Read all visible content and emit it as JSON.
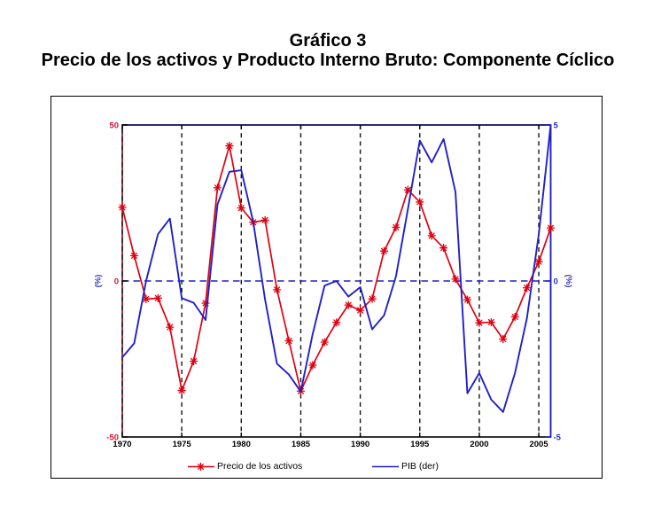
{
  "page": {
    "title_line1": "Gráfico 3",
    "title_line2": "Precio de los activos y Producto Interno Bruto: Componente Cíclico"
  },
  "chart_data": {
    "type": "line",
    "title": "Gráfico 3 — Precio de los activos y Producto Interno Bruto: Componente Cíclico",
    "x": [
      1970,
      1971,
      1972,
      1973,
      1974,
      1975,
      1976,
      1977,
      1978,
      1979,
      1980,
      1981,
      1982,
      1983,
      1984,
      1985,
      1986,
      1987,
      1988,
      1989,
      1990,
      1991,
      1992,
      1993,
      1994,
      1995,
      1996,
      1997,
      1998,
      1999,
      2000,
      2001,
      2002,
      2003,
      2004,
      2005,
      2006
    ],
    "x_ticks": [
      1970,
      1975,
      1980,
      1985,
      1990,
      1995,
      2000,
      2005
    ],
    "series": [
      {
        "name": "Precio de los activos",
        "axis": "left",
        "color": "#e00010",
        "marker": "asterisk",
        "values": [
          23.6,
          8.1,
          -5.8,
          -5.5,
          -14.8,
          -35.1,
          -25.7,
          -7.1,
          29.9,
          43.3,
          23.4,
          18.8,
          19.5,
          -2.8,
          -19.2,
          -35.3,
          -27.0,
          -19.6,
          -13.3,
          -7.7,
          -9.4,
          -5.7,
          9.6,
          17.2,
          29.2,
          25.3,
          14.5,
          10.6,
          0.6,
          -6.0,
          -13.4,
          -13.2,
          -18.6,
          -11.5,
          -2.2,
          6.2,
          17.0
        ]
      },
      {
        "name": "PIB (der)",
        "axis": "right",
        "color": "#2020c8",
        "marker": "none",
        "values": [
          -2.45,
          -2.0,
          0.0,
          1.5,
          2.0,
          -0.55,
          -0.7,
          -1.25,
          2.45,
          3.5,
          3.55,
          1.9,
          -0.6,
          -2.65,
          -3.0,
          -3.55,
          -1.7,
          -0.15,
          0.0,
          -0.5,
          -0.2,
          -1.55,
          -1.1,
          0.15,
          2.3,
          4.5,
          3.8,
          4.55,
          2.85,
          -3.6,
          -2.95,
          -3.8,
          -4.2,
          -2.95,
          -1.2,
          1.5,
          5.0
        ]
      }
    ],
    "left_axis": {
      "label": "(%)",
      "ticks": [
        50,
        0,
        -50
      ],
      "range": [
        -50,
        50
      ],
      "tick_color": "#d41535",
      "label_color": "#3a3ab8"
    },
    "right_axis": {
      "label": "(%)",
      "ticks": [
        5,
        0,
        -5
      ],
      "range": [
        -5,
        5
      ],
      "tick_color": "#2a34bb",
      "label_color": "#3a3ab8"
    },
    "x_tick_color": "#000000",
    "grid": "vertical-dashed-black",
    "zero_line": "dashed-blue",
    "legend_position": "bottom",
    "ylabel_left": "(%)",
    "ylabel_right": "(%)",
    "xlabel": ""
  },
  "legend": {
    "items": [
      {
        "label": "Precio de los activos"
      },
      {
        "label": "PIB (der)"
      }
    ]
  }
}
